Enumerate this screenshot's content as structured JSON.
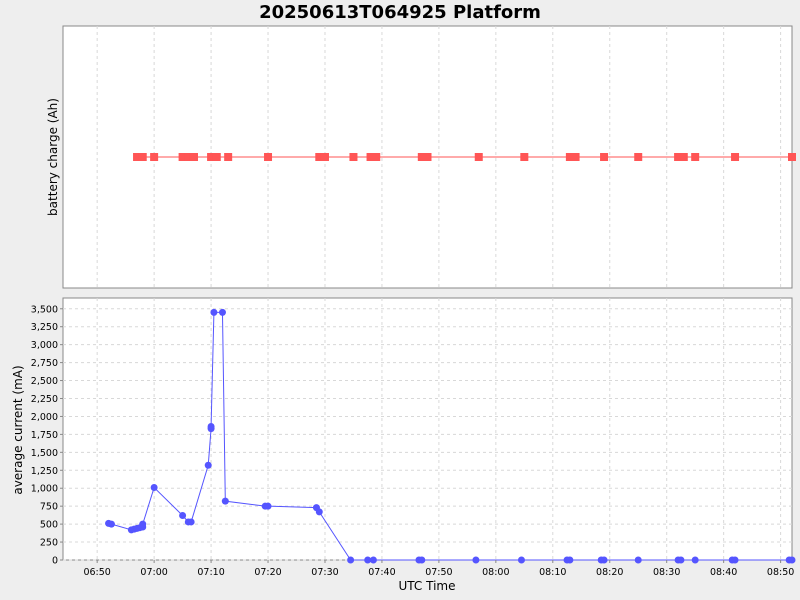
{
  "chart_data": {
    "type": "line",
    "title": "20250613T064925 Platform",
    "xlabel": "UTC Time",
    "x_ticks": [
      "06:50",
      "07:00",
      "07:10",
      "07:20",
      "07:30",
      "07:40",
      "07:50",
      "08:00",
      "08:10",
      "08:20",
      "08:30",
      "08:40",
      "08:50"
    ],
    "x_range": [
      "06:44",
      "08:52"
    ],
    "grid": true,
    "panels": [
      {
        "ylabel": "battery charge (Ah)",
        "y_ticks": [],
        "series": [
          {
            "marker": "square",
            "color": "#ff5555",
            "x": [
              "06:57",
              "06:58",
              "07:00",
              "07:05",
              "07:06",
              "07:07",
              "07:10",
              "07:11",
              "07:13",
              "07:20",
              "07:29",
              "07:30",
              "07:35",
              "07:38",
              "07:39",
              "07:47",
              "07:48",
              "07:57",
              "08:05",
              "08:13",
              "08:14",
              "08:19",
              "08:25",
              "08:32",
              "08:33",
              "08:35",
              "08:42",
              "08:52"
            ],
            "y": [
              0,
              0,
              0,
              0,
              0,
              0,
              0,
              0,
              0,
              0,
              0,
              0,
              0,
              0,
              0,
              0,
              0,
              0,
              0,
              0,
              0,
              0,
              0,
              0,
              0,
              0,
              0,
              0
            ]
          }
        ]
      },
      {
        "ylabel": "average current (mA)",
        "y_range": [
          0,
          3650
        ],
        "y_ticks": [
          "0",
          "250",
          "500",
          "750",
          "1,000",
          "1,250",
          "1,500",
          "1,750",
          "2,000",
          "2,250",
          "2,500",
          "2,750",
          "3,000",
          "3,250",
          "3,500"
        ],
        "y_tick_values": [
          0,
          250,
          500,
          750,
          1000,
          1250,
          1500,
          1750,
          2000,
          2250,
          2500,
          2750,
          3000,
          3250,
          3500
        ],
        "series": [
          {
            "marker": "circle",
            "color": "#5555ff",
            "x": [
              "06:52",
              "06:52.5",
              "06:56",
              "06:56.5",
              "06:57",
              "06:57.5",
              "06:58",
              "06:58",
              "07:00",
              "07:05",
              "07:06",
              "07:06.5",
              "07:09.5",
              "07:10",
              "07:10",
              "07:10.5",
              "07:12",
              "07:12.5",
              "07:19.5",
              "07:20",
              "07:28.5",
              "07:29",
              "07:34.5",
              "07:37.5",
              "07:38.5",
              "07:46.5",
              "07:47",
              "07:56.5",
              "08:04.5",
              "08:12.5",
              "08:13",
              "08:18.5",
              "08:19",
              "08:25",
              "08:32",
              "08:32.5",
              "08:35",
              "08:41.5",
              "08:42",
              "08:51.5",
              "08:52"
            ],
            "y": [
              510,
              500,
              420,
              430,
              440,
              450,
              460,
              500,
              1010,
              620,
              530,
              530,
              1320,
              1830,
              1860,
              3450,
              3450,
              820,
              750,
              750,
              730,
              670,
              0,
              0,
              0,
              0,
              0,
              0,
              0,
              0,
              0,
              0,
              0,
              0,
              0,
              0,
              0,
              0,
              0,
              0,
              0
            ]
          }
        ]
      }
    ]
  }
}
